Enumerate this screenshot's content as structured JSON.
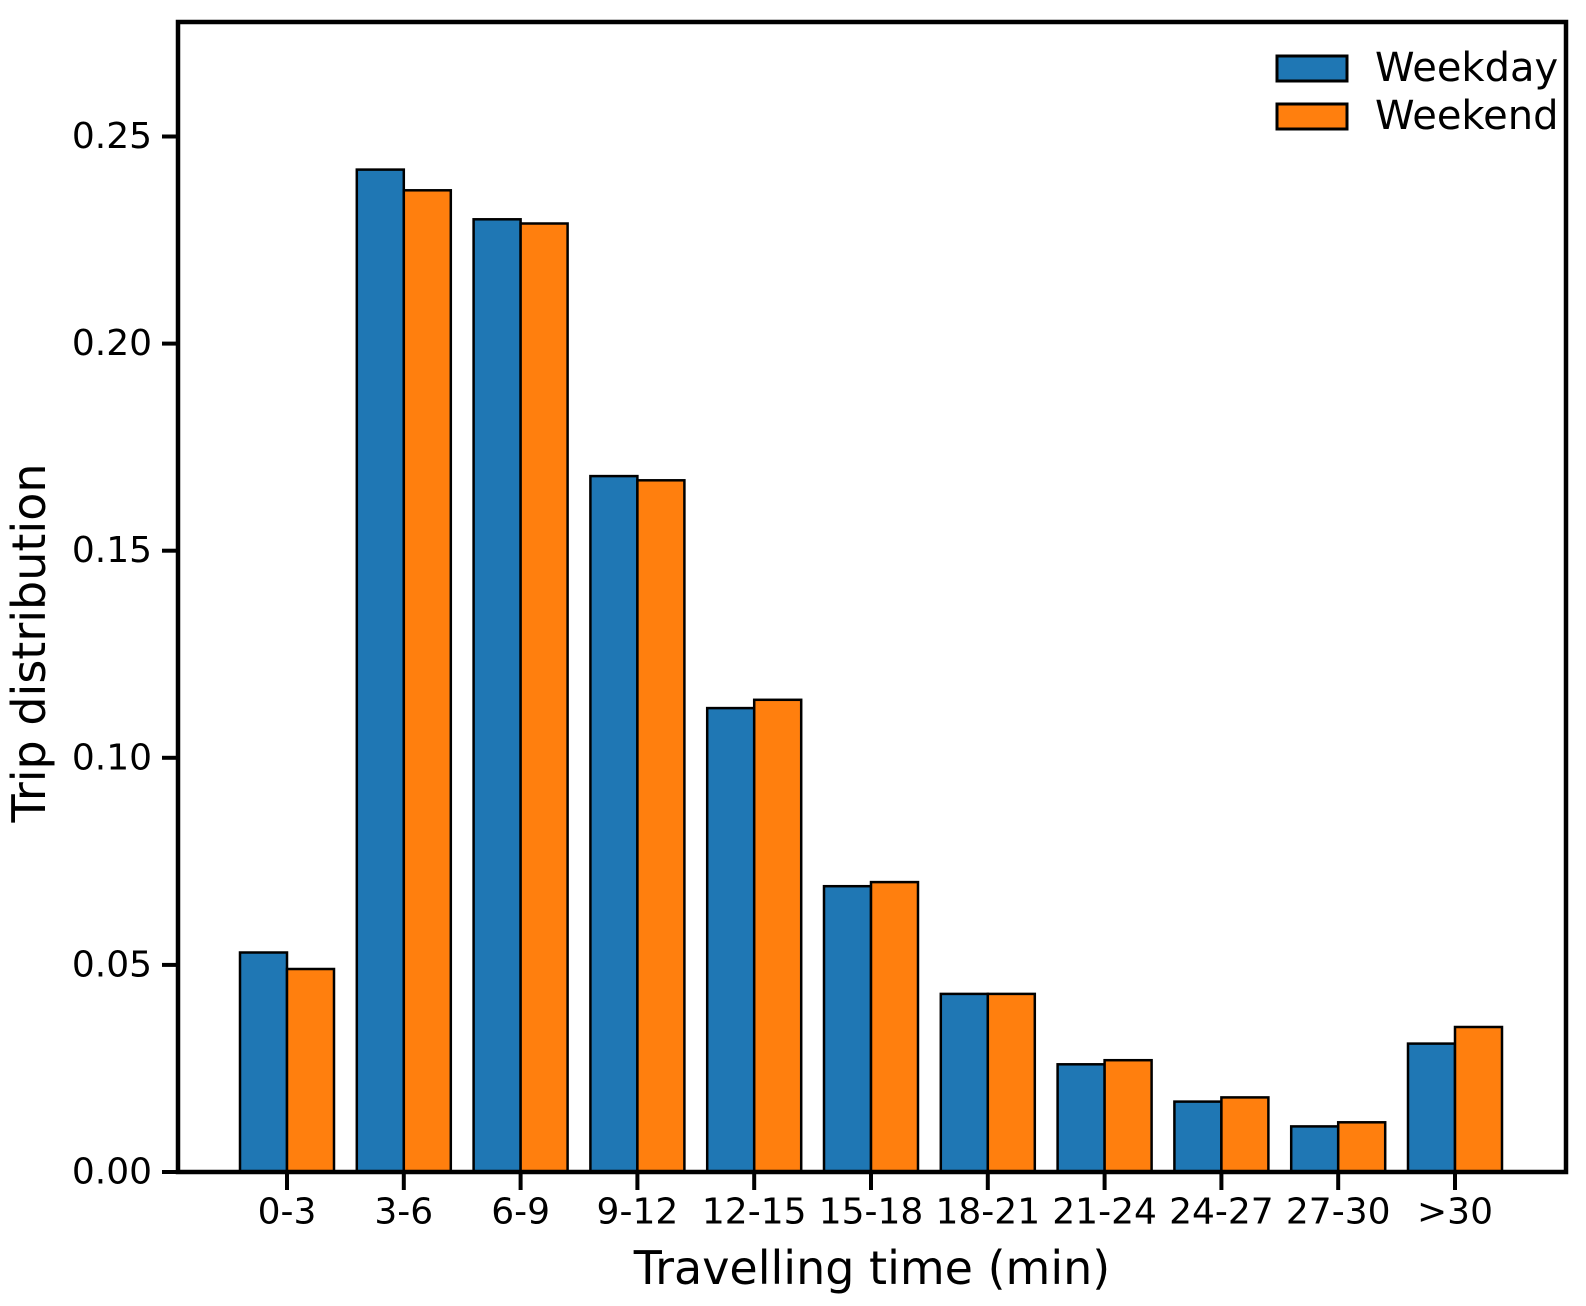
{
  "chart_data": {
    "type": "bar",
    "title": "",
    "categories": [
      "0-3",
      "3-6",
      "6-9",
      "9-12",
      "12-15",
      "15-18",
      "18-21",
      "21-24",
      "24-27",
      "27-30",
      ">30"
    ],
    "series": [
      {
        "name": "Weekday",
        "color": "#1f77b4",
        "values": [
          0.053,
          0.242,
          0.23,
          0.168,
          0.112,
          0.069,
          0.043,
          0.026,
          0.017,
          0.011,
          0.031
        ]
      },
      {
        "name": "Weekend",
        "color": "#ff7f0e",
        "values": [
          0.049,
          0.237,
          0.229,
          0.167,
          0.114,
          0.07,
          0.043,
          0.027,
          0.018,
          0.012,
          0.035
        ]
      }
    ],
    "xlabel": "Travelling time (min)",
    "ylabel": "Trip distribution",
    "ylim": [
      0,
      0.278
    ],
    "yticks": [
      0.0,
      0.05,
      0.1,
      0.15,
      0.2,
      0.25
    ],
    "ytick_labels": [
      "0.00",
      "0.05",
      "0.10",
      "0.15",
      "0.20",
      "0.25"
    ],
    "legend_position": "upper right",
    "legend_labels": [
      "Weekday",
      "Weekend"
    ],
    "grid": false,
    "bar_edge_color": "#000000",
    "axis_color": "#000000",
    "background_color": "#ffffff"
  }
}
